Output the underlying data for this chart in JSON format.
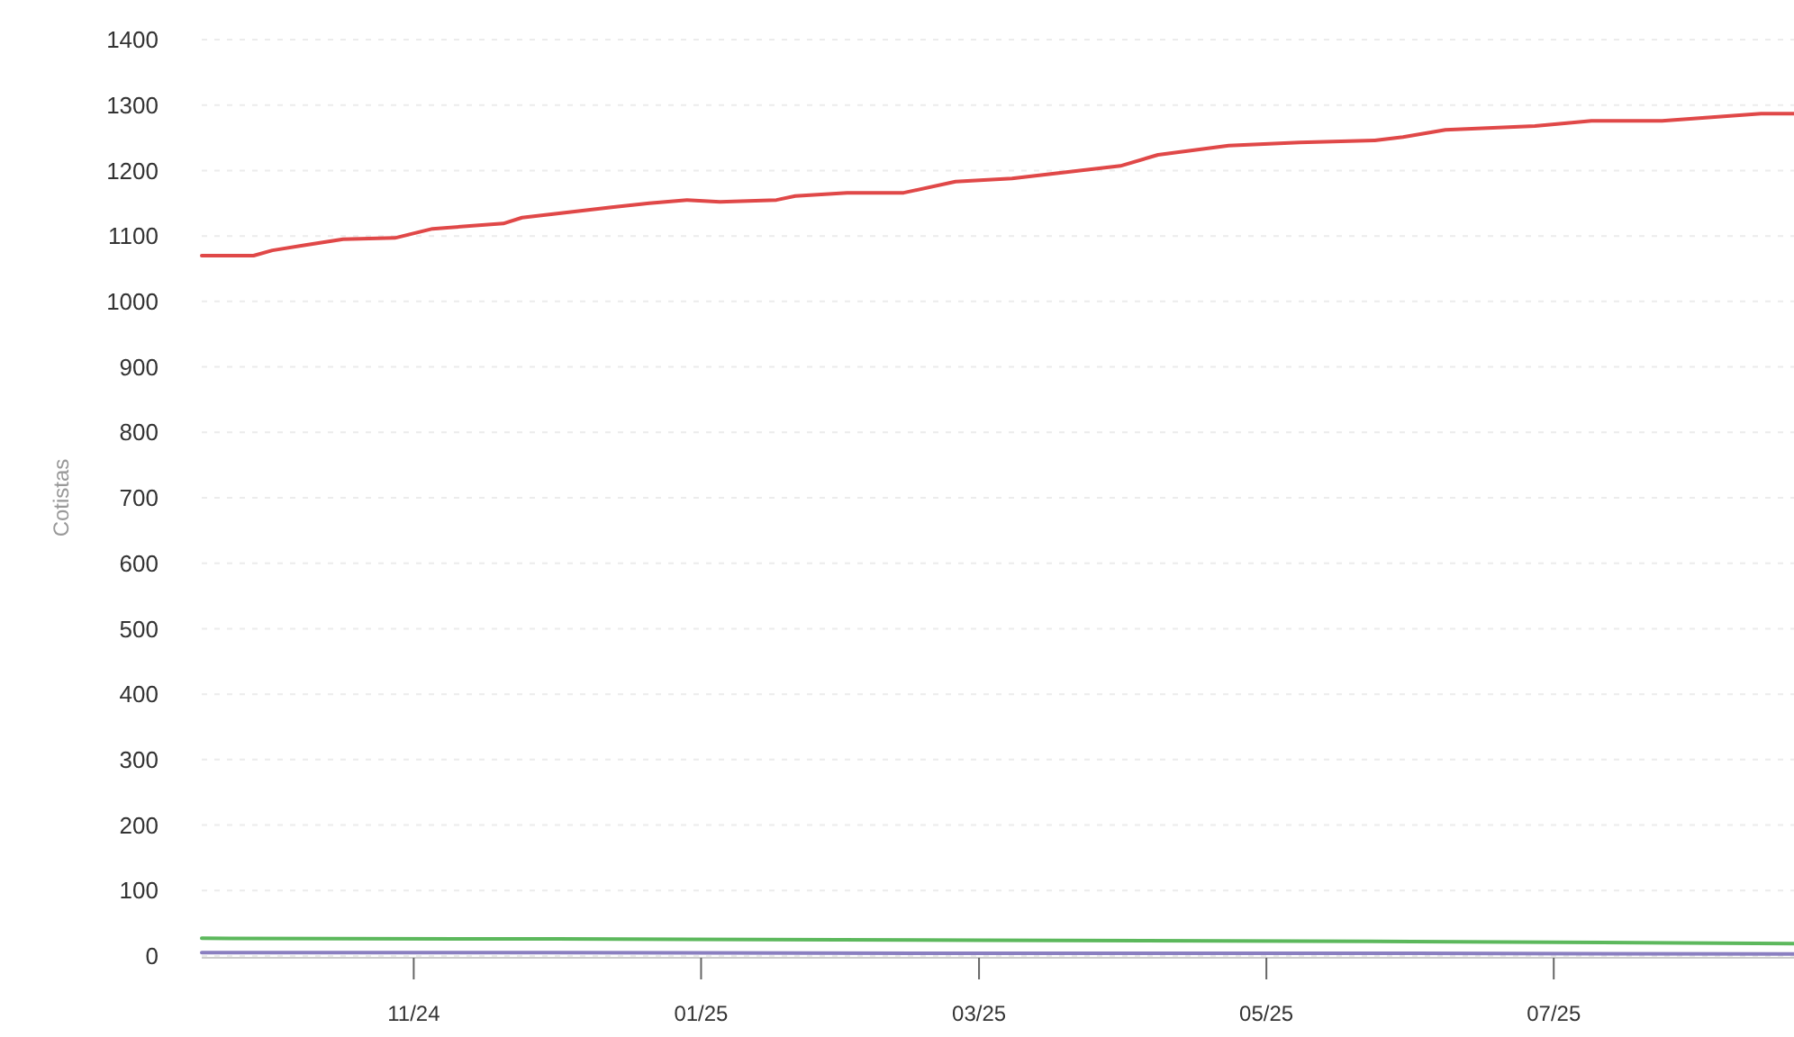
{
  "chart_data": {
    "type": "line",
    "ylabel": "Cotistas",
    "xlim": [
      "2024-09-17",
      "2025-08-21"
    ],
    "ylim": [
      0,
      1400
    ],
    "yticks": [
      0,
      100,
      200,
      300,
      400,
      500,
      600,
      700,
      800,
      900,
      1000,
      1100,
      1200,
      1300,
      1400
    ],
    "xticks": [
      {
        "value": "2024-11-01",
        "label": "11/24"
      },
      {
        "value": "2025-01-01",
        "label": "01/25"
      },
      {
        "value": "2025-03-01",
        "label": "03/25"
      },
      {
        "value": "2025-05-01",
        "label": "05/25"
      },
      {
        "value": "2025-07-01",
        "label": "07/25"
      }
    ],
    "grid": "y",
    "series": [
      {
        "color": "#e04848",
        "x": [
          "2024-09-17",
          "2024-09-28",
          "2024-10-02",
          "2024-10-09",
          "2024-10-17",
          "2024-10-28",
          "2024-11-05",
          "2024-11-20",
          "2024-11-24",
          "2024-12-13",
          "2024-12-21",
          "2024-12-29",
          "2025-01-05",
          "2025-01-17",
          "2025-01-21",
          "2025-02-01",
          "2025-02-13",
          "2025-02-24",
          "2025-03-08",
          "2025-03-31",
          "2025-04-08",
          "2025-04-23",
          "2025-05-08",
          "2025-05-24",
          "2025-05-30",
          "2025-06-08",
          "2025-06-27",
          "2025-07-09",
          "2025-07-24",
          "2025-08-14",
          "2025-08-21"
        ],
        "values": [
          1070,
          1070,
          1078,
          1086,
          1095,
          1097,
          1111,
          1119,
          1128,
          1144,
          1150,
          1155,
          1152,
          1155,
          1161,
          1166,
          1166,
          1183,
          1188,
          1207,
          1224,
          1238,
          1243,
          1246,
          1251,
          1262,
          1268,
          1276,
          1276,
          1287,
          1287
        ]
      },
      {
        "color": "#5cb85c",
        "x": [
          "2024-09-17",
          "2024-12-01",
          "2025-03-01",
          "2025-06-01",
          "2025-08-21"
        ],
        "values": [
          27,
          26,
          24,
          22,
          19
        ]
      },
      {
        "color": "#8a7fc0",
        "x": [
          "2024-09-17",
          "2024-12-01",
          "2025-03-01",
          "2025-06-01",
          "2025-08-21"
        ],
        "values": [
          5,
          5,
          4,
          4,
          3
        ]
      }
    ]
  }
}
